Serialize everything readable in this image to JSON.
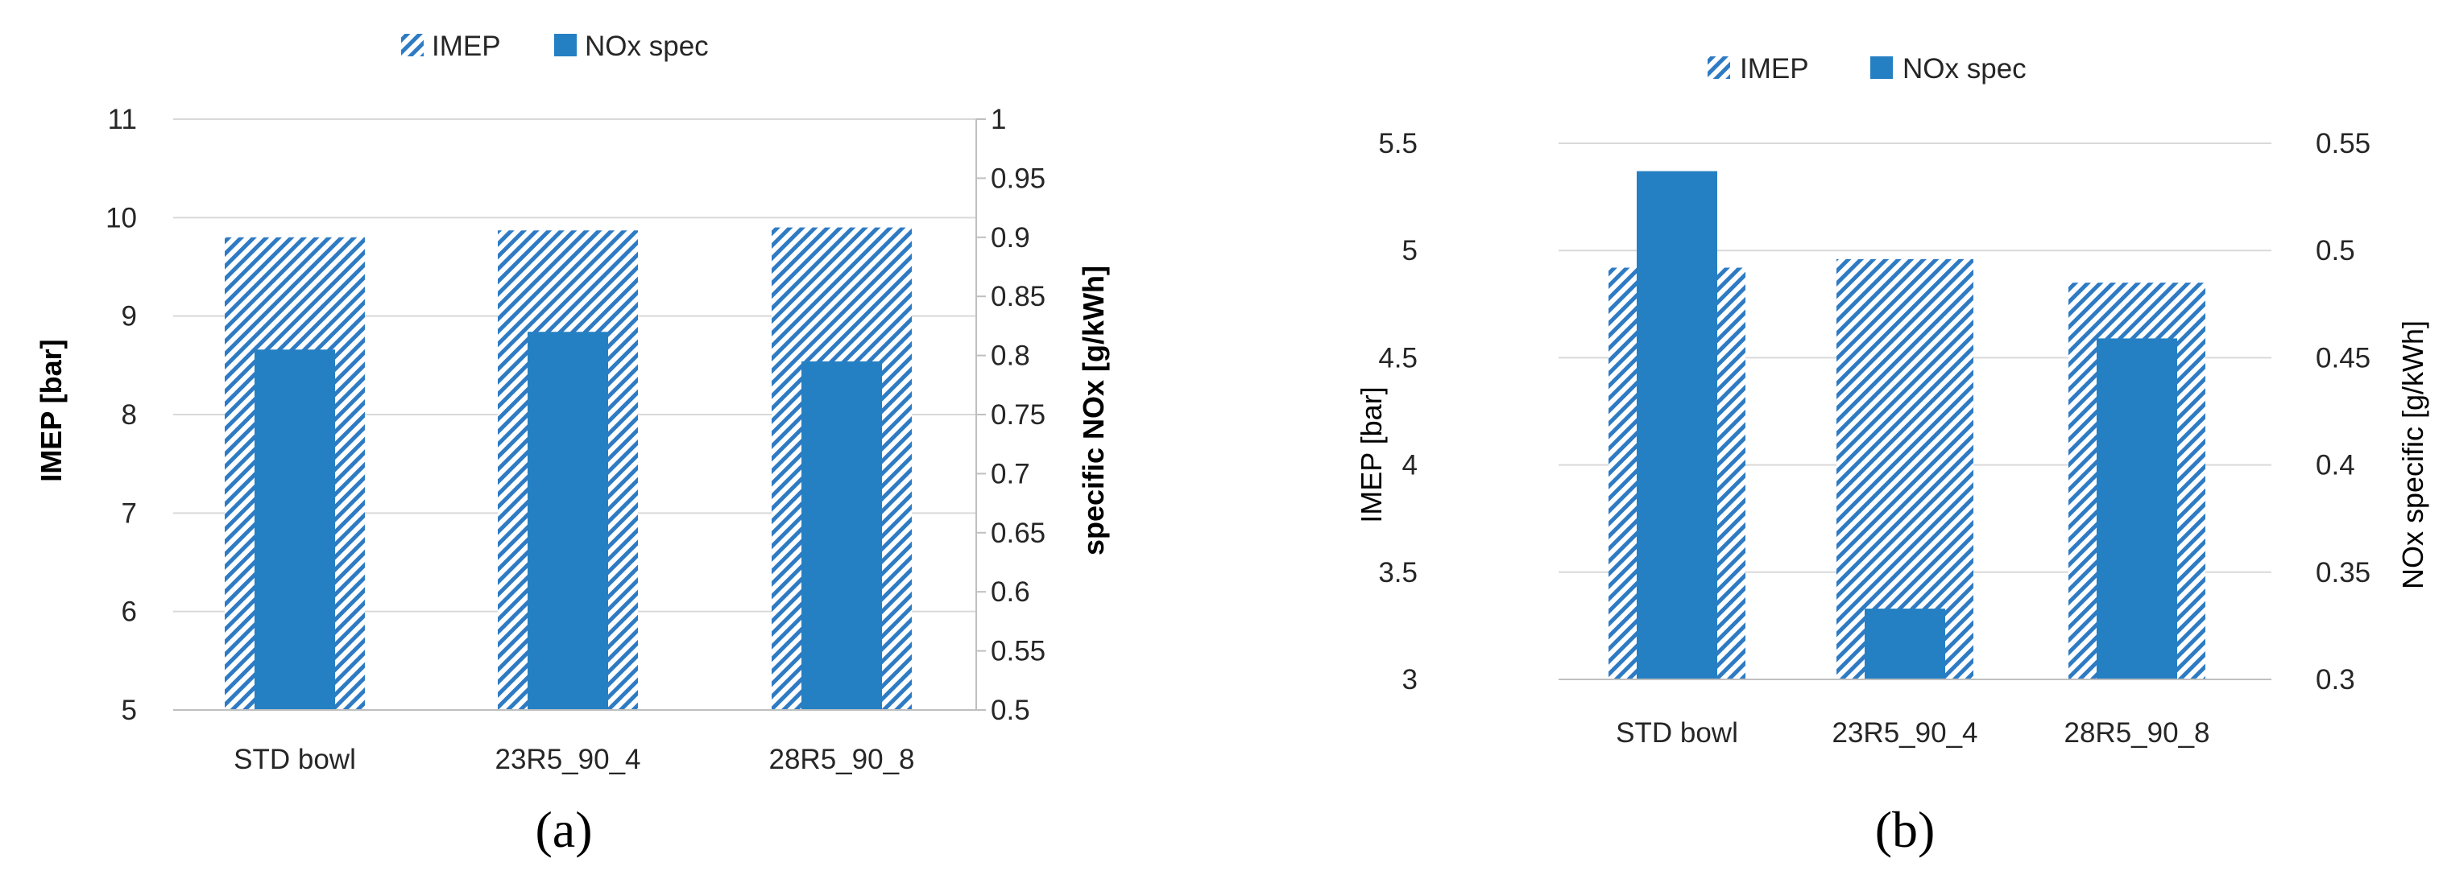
{
  "colors": {
    "imep": "#2e7bc4",
    "nox": "#2480c3",
    "grid": "#d9d9d9",
    "axis": "#bfbfbf"
  },
  "chart_data": [
    {
      "type": "bar",
      "caption": "(a)",
      "categories": [
        "STD bowl",
        "23R5_90_4",
        "28R5_90_8"
      ],
      "series": [
        {
          "name": "IMEP",
          "axis": "left",
          "values": [
            9.8,
            9.87,
            9.9
          ]
        },
        {
          "name": "NOx spec",
          "axis": "right",
          "values": [
            0.805,
            0.82,
            0.795
          ]
        }
      ],
      "ylabel": "IMEP [bar]",
      "y2label": "specific  NOx [g/kWh]",
      "ylim": [
        5,
        11
      ],
      "y2lim": [
        0.5,
        1
      ],
      "yticks": [
        "5",
        "6",
        "7",
        "8",
        "9",
        "10",
        "11"
      ],
      "y2ticks": [
        "0.5",
        "0.55",
        "0.6",
        "0.65",
        "0.7",
        "0.75",
        "0.8",
        "0.85",
        "0.9",
        "0.95",
        "1"
      ],
      "legend": [
        "IMEP",
        "NOx spec"
      ],
      "grid": true
    },
    {
      "type": "bar",
      "caption": "(b)",
      "categories": [
        "STD bowl",
        "23R5_90_4",
        "28R5_90_8"
      ],
      "series": [
        {
          "name": "IMEP",
          "axis": "left",
          "values": [
            4.92,
            4.96,
            4.85
          ]
        },
        {
          "name": "NOx spec",
          "axis": "right",
          "values": [
            0.537,
            0.333,
            0.459
          ]
        }
      ],
      "ylabel": "IMEP [bar]",
      "y2label": "NOx specific [g/kWh]",
      "ylim": [
        3,
        5.5
      ],
      "y2lim": [
        0.3,
        0.55
      ],
      "yticks": [
        "3",
        "3.5",
        "4",
        "4.5",
        "5",
        "5.5"
      ],
      "y2ticks": [
        "0.3",
        "0.35",
        "0.4",
        "0.45",
        "0.5",
        "0.55"
      ],
      "legend": [
        "IMEP",
        "NOx spec"
      ],
      "grid": true
    }
  ]
}
